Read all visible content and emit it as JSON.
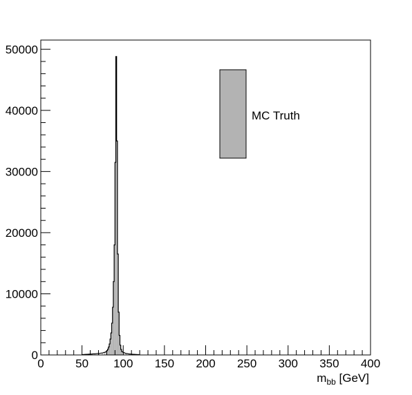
{
  "chart_data": {
    "type": "bar",
    "title": "",
    "xlabel_main": "m",
    "xlabel_sub": "bb",
    "xlabel_unit": " [GeV]",
    "ylabel": "",
    "xlim": [
      0,
      400
    ],
    "ylim": [
      0,
      51500
    ],
    "x_ticks": [
      0,
      50,
      100,
      150,
      200,
      250,
      300,
      350,
      400
    ],
    "y_ticks": [
      0,
      10000,
      20000,
      30000,
      40000,
      50000
    ],
    "bin_width": 1,
    "bins": [
      {
        "x0": 50,
        "value": 60
      },
      {
        "x0": 55,
        "value": 100
      },
      {
        "x0": 60,
        "value": 140
      },
      {
        "x0": 65,
        "value": 190
      },
      {
        "x0": 70,
        "value": 250
      },
      {
        "x0": 74,
        "value": 320
      },
      {
        "x0": 77,
        "value": 420
      },
      {
        "x0": 79,
        "value": 560
      },
      {
        "x0": 80,
        "value": 700
      },
      {
        "x0": 81,
        "value": 950
      },
      {
        "x0": 82,
        "value": 1300
      },
      {
        "x0": 83,
        "value": 1800
      },
      {
        "x0": 84,
        "value": 2600
      },
      {
        "x0": 85,
        "value": 3600
      },
      {
        "x0": 86,
        "value": 5200
      },
      {
        "x0": 87,
        "value": 7800
      },
      {
        "x0": 88,
        "value": 12000
      },
      {
        "x0": 89,
        "value": 18000
      },
      {
        "x0": 90,
        "value": 31500
      },
      {
        "x0": 91,
        "value": 48800
      },
      {
        "x0": 92,
        "value": 35000
      },
      {
        "x0": 93,
        "value": 16500
      },
      {
        "x0": 94,
        "value": 7000
      },
      {
        "x0": 95,
        "value": 3200
      },
      {
        "x0": 96,
        "value": 1600
      },
      {
        "x0": 97,
        "value": 900
      },
      {
        "x0": 98,
        "value": 560
      },
      {
        "x0": 100,
        "value": 380
      },
      {
        "x0": 103,
        "value": 250
      },
      {
        "x0": 107,
        "value": 160
      },
      {
        "x0": 112,
        "value": 100
      },
      {
        "x0": 118,
        "value": 60
      }
    ],
    "fill_color": "#b3b3b3",
    "line_color": "#000000",
    "legend": {
      "label": "MC Truth",
      "placement": "top-right"
    },
    "grid": false
  }
}
